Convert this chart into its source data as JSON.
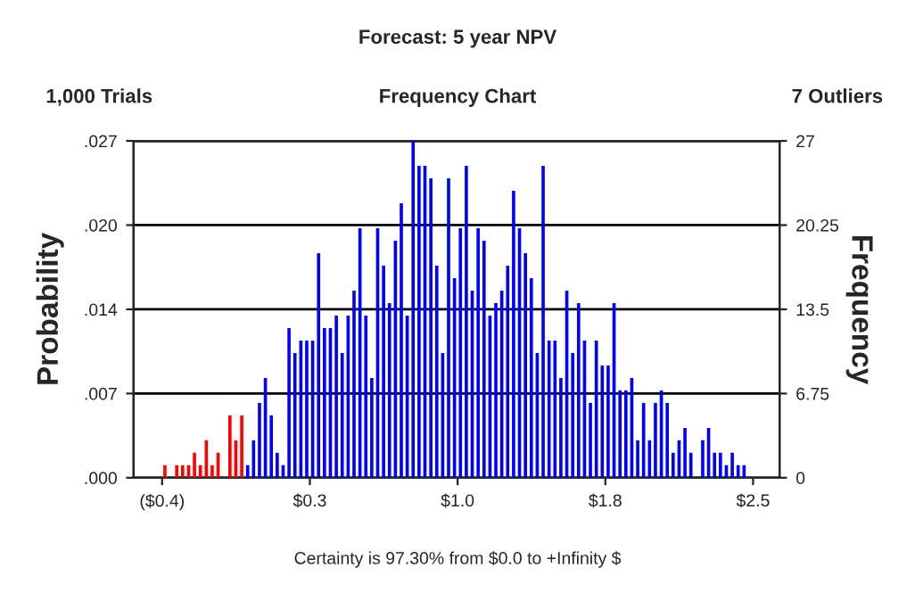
{
  "chart_data": {
    "type": "histogram",
    "title": "Forecast: 5 year NPV",
    "subtitle": "Frequency Chart",
    "annotations": [
      "1,000 Trials",
      "7 Outliers",
      "Certainty is 97.30% from $0.0 to +Infinity $"
    ],
    "ylabel": "Probability",
    "y2label": "Frequency",
    "bins": [
      -0.4,
      -0.371,
      -0.342,
      -0.313,
      -0.284,
      -0.255,
      -0.226,
      -0.197,
      -0.168,
      -0.139,
      -0.11,
      -0.081,
      -0.052,
      -0.023,
      0.006,
      0.035,
      0.064,
      0.093,
      0.122,
      0.151,
      0.18,
      0.209,
      0.238,
      0.267,
      0.296,
      0.325,
      0.354,
      0.383,
      0.412,
      0.441,
      0.47,
      0.499,
      0.528,
      0.557,
      0.586,
      0.615,
      0.644,
      0.673,
      0.702,
      0.731,
      0.76,
      0.789,
      0.818,
      0.847,
      0.876,
      0.905,
      0.934,
      0.963,
      0.992,
      1.021,
      1.05,
      1.079,
      1.108,
      1.137,
      1.166,
      1.195,
      1.224,
      1.253,
      1.282,
      1.311,
      1.34,
      1.369,
      1.398,
      1.427,
      1.456,
      1.485,
      1.514,
      1.543,
      1.572,
      1.601,
      1.63,
      1.659,
      1.688,
      1.717,
      1.746,
      1.775,
      1.804,
      1.833,
      1.862,
      1.891,
      1.92,
      1.949,
      1.978,
      2.007,
      2.036,
      2.065,
      2.094,
      2.123,
      2.152,
      2.181,
      2.21,
      2.239,
      2.268,
      2.297,
      2.326,
      2.355,
      2.384,
      2.413,
      2.442,
      2.471,
      2.5
    ],
    "series": [
      {
        "axis": "y2",
        "values": [
          1,
          0,
          1,
          1,
          1,
          2,
          1,
          3,
          1,
          2,
          0,
          5,
          3,
          5,
          1,
          3,
          6,
          8,
          5,
          2,
          1,
          12,
          10,
          11,
          11,
          11,
          18,
          12,
          12,
          13,
          10,
          13,
          15,
          20,
          13,
          8,
          20,
          17,
          14,
          19,
          22,
          13,
          27,
          25,
          25,
          24,
          17,
          10,
          24,
          16,
          20,
          25,
          15,
          20,
          19,
          13,
          14,
          15,
          17,
          23,
          20,
          18,
          16,
          10,
          25,
          11,
          11,
          8,
          15,
          10,
          14,
          11,
          6,
          11,
          9,
          9,
          14,
          7,
          7,
          8,
          3,
          6,
          3,
          6,
          7,
          6,
          2,
          3,
          4,
          2,
          0,
          3,
          4,
          2,
          2,
          1,
          2,
          1,
          1,
          0
        ],
        "colors": [
          "#ff0000",
          "#ff0000",
          "#ff0000",
          "#ff0000",
          "#ff0000",
          "#ff0000",
          "#ff0000",
          "#ff0000",
          "#ff0000",
          "#ff0000",
          "#ff0000",
          "#ff0000",
          "#ff0000",
          "#ff0000",
          "#0000ff",
          "#0000ff",
          "#0000ff",
          "#0000ff",
          "#0000ff",
          "#0000ff",
          "#0000ff",
          "#0000ff",
          "#0000ff",
          "#0000ff",
          "#0000ff",
          "#0000ff",
          "#0000ff",
          "#0000ff",
          "#0000ff",
          "#0000ff",
          "#0000ff",
          "#0000ff",
          "#0000ff",
          "#0000ff",
          "#0000ff",
          "#0000ff",
          "#0000ff",
          "#0000ff",
          "#0000ff",
          "#0000ff",
          "#0000ff",
          "#0000ff",
          "#0000ff",
          "#0000ff",
          "#0000ff",
          "#0000ff",
          "#0000ff",
          "#0000ff",
          "#0000ff",
          "#0000ff",
          "#0000ff",
          "#0000ff",
          "#0000ff",
          "#0000ff",
          "#0000ff",
          "#0000ff",
          "#0000ff",
          "#0000ff",
          "#0000ff",
          "#0000ff",
          "#0000ff",
          "#0000ff",
          "#0000ff",
          "#0000ff",
          "#0000ff",
          "#0000ff",
          "#0000ff",
          "#0000ff",
          "#0000ff",
          "#0000ff",
          "#0000ff",
          "#0000ff",
          "#0000ff",
          "#0000ff",
          "#0000ff",
          "#0000ff",
          "#0000ff",
          "#0000ff",
          "#0000ff",
          "#0000ff",
          "#0000ff",
          "#0000ff",
          "#0000ff",
          "#0000ff",
          "#0000ff",
          "#0000ff",
          "#0000ff",
          "#0000ff",
          "#0000ff",
          "#0000ff",
          "#0000ff",
          "#0000ff",
          "#0000ff",
          "#0000ff",
          "#0000ff",
          "#0000ff",
          "#0000ff",
          "#0000ff",
          "#0000ff",
          "#0000ff"
        ]
      }
    ],
    "xlim": [
      -0.54,
      2.63
    ],
    "xticks": [
      {
        "value": -0.4,
        "label": "($0.4)"
      },
      {
        "value": 0.325,
        "label": "$0.3"
      },
      {
        "value": 1.05,
        "label": "$1.0"
      },
      {
        "value": 1.775,
        "label": "$1.8"
      },
      {
        "value": 2.5,
        "label": "$2.5"
      }
    ],
    "ylim": [
      0,
      0.027
    ],
    "yticks": [
      {
        "value": 0,
        "label": ".000"
      },
      {
        "value": 0.00675,
        "label": ".007"
      },
      {
        "value": 0.0135,
        "label": ".014"
      },
      {
        "value": 0.02025,
        "label": ".020"
      },
      {
        "value": 0.027,
        "label": ".027"
      }
    ],
    "y2lim": [
      0,
      27
    ],
    "y2ticks": [
      0,
      6.75,
      13.5,
      20.25,
      27
    ],
    "grid": "y"
  }
}
